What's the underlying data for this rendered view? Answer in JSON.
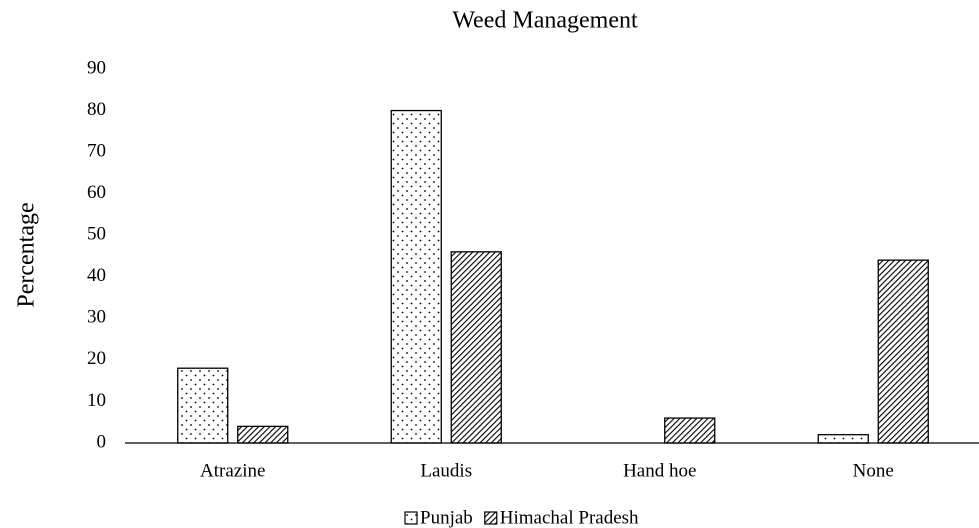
{
  "chart_data": {
    "type": "bar",
    "title": "Weed Management",
    "y_label": "Percentage",
    "categories": [
      "Atrazine",
      "Laudis",
      "Hand hoe",
      "None"
    ],
    "series": [
      {
        "name": "Punjab",
        "color": "#000000",
        "pattern": "dots",
        "values": [
          18,
          80,
          0,
          2
        ]
      },
      {
        "name": "Himachal Pradesh",
        "color": "#000000",
        "pattern": "hatch",
        "values": [
          4,
          46,
          6,
          44
        ]
      }
    ],
    "ylim": [
      0,
      90
    ],
    "yticks": [
      0,
      10,
      20,
      30,
      40,
      50,
      60,
      70,
      80,
      90
    ],
    "grid": false,
    "legend": "bottom"
  }
}
